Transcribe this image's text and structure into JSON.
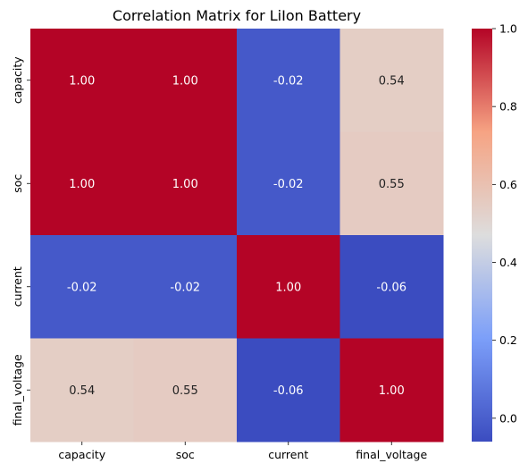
{
  "chart_data": {
    "type": "heatmap",
    "title": "Correlation Matrix for LiIon Battery",
    "x_categories": [
      "capacity",
      "soc",
      "current",
      "final_voltage"
    ],
    "y_categories": [
      "capacity",
      "soc",
      "current",
      "final_voltage"
    ],
    "values": [
      [
        1.0,
        1.0,
        -0.02,
        0.54
      ],
      [
        1.0,
        1.0,
        -0.02,
        0.55
      ],
      [
        -0.02,
        -0.02,
        1.0,
        -0.06
      ],
      [
        0.54,
        0.55,
        -0.06,
        1.0
      ]
    ],
    "annotation_format": "0.00",
    "colormap": "coolwarm",
    "colors": {
      "low": "#3b4cc0",
      "mid": "#dddddd",
      "high": "#b40426"
    },
    "colorbar": {
      "vmin": -0.06,
      "vmax": 1.0,
      "ticks": [
        "0.0",
        "0.2",
        "0.4",
        "0.6",
        "0.8",
        "1.0"
      ],
      "tick_values": [
        0.0,
        0.2,
        0.4,
        0.6,
        0.8,
        1.0
      ]
    },
    "xlabel": "",
    "ylabel": ""
  }
}
